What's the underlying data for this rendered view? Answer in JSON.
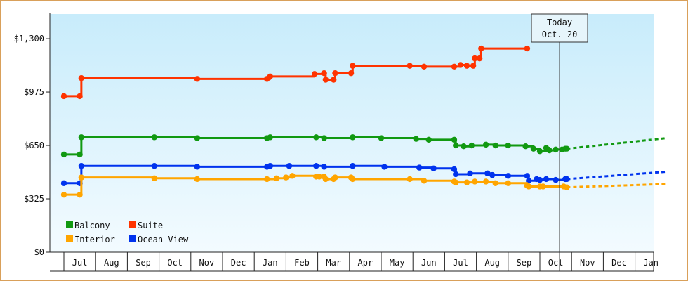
{
  "chart_data": {
    "type": "line",
    "x_axis": {
      "unit": "month",
      "start_month": "2015-06-20",
      "end_month": "2016-01-27",
      "tick_labels": [
        "Jul",
        "Aug",
        "Sep",
        "Oct",
        "Nov",
        "Dec",
        "Jan",
        "Feb",
        "Mar",
        "Apr",
        "May",
        "Jun",
        "Jul",
        "Aug",
        "Sep",
        "Oct",
        "Nov",
        "Dec",
        "Jan"
      ]
    },
    "y_axis": {
      "ylim": [
        0,
        1450
      ],
      "ticks": [
        0,
        325,
        650,
        975,
        1300
      ],
      "tick_labels": [
        "$0",
        "$325",
        "$650",
        "$975",
        "$1,300"
      ]
    },
    "today_marker": {
      "line1": "Today",
      "line2": "Oct. 20",
      "month_index": 15.62
    },
    "legend": {
      "placement": "bottom-left"
    },
    "series": [
      {
        "name": "Suite",
        "color": "#ff3300",
        "points": [
          [
            0,
            950
          ],
          [
            0.5,
            950
          ],
          [
            0.55,
            1060
          ],
          [
            4.2,
            1055
          ],
          [
            6.4,
            1055
          ],
          [
            6.5,
            1070
          ],
          [
            7.9,
            1085
          ],
          [
            8.2,
            1090
          ],
          [
            8.25,
            1050
          ],
          [
            8.5,
            1050
          ],
          [
            8.55,
            1090
          ],
          [
            9.05,
            1090
          ],
          [
            9.1,
            1135
          ],
          [
            10.9,
            1135
          ],
          [
            11.35,
            1130
          ],
          [
            12.3,
            1130
          ],
          [
            12.5,
            1140
          ],
          [
            12.7,
            1135
          ],
          [
            12.9,
            1135
          ],
          [
            12.95,
            1180
          ],
          [
            13.1,
            1180
          ],
          [
            13.15,
            1240
          ],
          [
            14.6,
            1240
          ]
        ],
        "forecast": []
      },
      {
        "name": "Balcony",
        "color": "#119911",
        "points": [
          [
            0,
            595
          ],
          [
            0.5,
            595
          ],
          [
            0.55,
            700
          ],
          [
            2.85,
            700
          ],
          [
            4.2,
            695
          ],
          [
            6.4,
            695
          ],
          [
            6.5,
            700
          ],
          [
            7.95,
            700
          ],
          [
            8.2,
            695
          ],
          [
            9.1,
            700
          ],
          [
            10.0,
            695
          ],
          [
            11.1,
            690
          ],
          [
            11.5,
            685
          ],
          [
            12.3,
            685
          ],
          [
            12.35,
            650
          ],
          [
            12.6,
            645
          ],
          [
            12.85,
            650
          ],
          [
            13.3,
            655
          ],
          [
            13.6,
            650
          ],
          [
            14.0,
            650
          ],
          [
            14.55,
            645
          ],
          [
            14.8,
            630
          ],
          [
            15.0,
            615
          ],
          [
            15.2,
            635
          ],
          [
            15.3,
            620
          ],
          [
            15.5,
            625
          ],
          [
            15.7,
            625
          ],
          [
            15.8,
            630
          ],
          [
            15.85,
            630
          ]
        ],
        "forecast": [
          [
            15.85,
            630
          ],
          [
            19.0,
            695
          ]
        ]
      },
      {
        "name": "Ocean View",
        "color": "#0033ee",
        "points": [
          [
            0,
            420
          ],
          [
            0.5,
            420
          ],
          [
            0.55,
            525
          ],
          [
            2.85,
            525
          ],
          [
            4.2,
            520
          ],
          [
            6.4,
            520
          ],
          [
            6.5,
            525
          ],
          [
            7.1,
            525
          ],
          [
            7.95,
            525
          ],
          [
            8.2,
            520
          ],
          [
            9.1,
            525
          ],
          [
            10.1,
            520
          ],
          [
            11.2,
            515
          ],
          [
            11.65,
            510
          ],
          [
            12.3,
            505
          ],
          [
            12.35,
            475
          ],
          [
            12.8,
            480
          ],
          [
            13.35,
            480
          ],
          [
            13.5,
            470
          ],
          [
            14.0,
            465
          ],
          [
            14.6,
            465
          ],
          [
            14.65,
            435
          ],
          [
            14.9,
            445
          ],
          [
            15.0,
            440
          ],
          [
            15.2,
            445
          ],
          [
            15.5,
            440
          ],
          [
            15.8,
            445
          ],
          [
            15.85,
            445
          ]
        ],
        "forecast": [
          [
            15.85,
            445
          ],
          [
            19.0,
            490
          ]
        ]
      },
      {
        "name": "Interior",
        "color": "#ffa500",
        "points": [
          [
            0,
            350
          ],
          [
            0.5,
            350
          ],
          [
            0.55,
            455
          ],
          [
            2.85,
            450
          ],
          [
            4.2,
            445
          ],
          [
            6.4,
            445
          ],
          [
            6.7,
            450
          ],
          [
            7.0,
            455
          ],
          [
            7.2,
            465
          ],
          [
            7.95,
            460
          ],
          [
            8.05,
            460
          ],
          [
            8.2,
            460
          ],
          [
            8.25,
            445
          ],
          [
            8.5,
            445
          ],
          [
            8.55,
            455
          ],
          [
            9.05,
            455
          ],
          [
            9.1,
            445
          ],
          [
            10.9,
            445
          ],
          [
            11.35,
            435
          ],
          [
            12.3,
            430
          ],
          [
            12.35,
            425
          ],
          [
            12.7,
            425
          ],
          [
            12.95,
            430
          ],
          [
            13.3,
            430
          ],
          [
            13.6,
            420
          ],
          [
            14.0,
            420
          ],
          [
            14.6,
            405
          ],
          [
            14.65,
            400
          ],
          [
            15.0,
            400
          ],
          [
            15.1,
            400
          ],
          [
            15.75,
            400
          ],
          [
            15.85,
            395
          ]
        ],
        "forecast": [
          [
            15.85,
            395
          ],
          [
            19.0,
            415
          ]
        ]
      }
    ]
  }
}
